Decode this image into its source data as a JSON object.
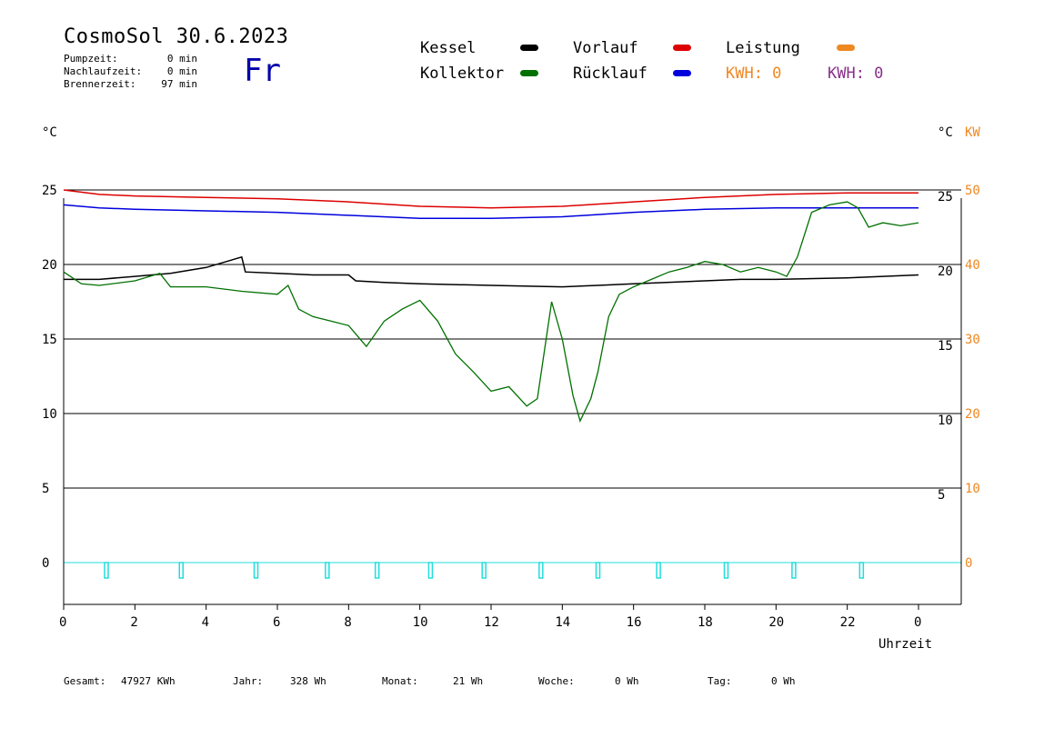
{
  "header": {
    "title": "CosmoSol 30.6.2023",
    "day": "Fr",
    "stats": [
      {
        "label": "Pumpzeit:",
        "value": "0 min"
      },
      {
        "label": "Nachlaufzeit:",
        "value": "0 min"
      },
      {
        "label": "Brennerzeit:",
        "value": "97 min"
      }
    ]
  },
  "legend": {
    "kessel": "Kessel",
    "kollektor": "Kollektor",
    "vorlauf": "Vorlauf",
    "ruecklauf": "Rücklauf",
    "leistung": "Leistung",
    "kwh1": "KWH: 0",
    "kwh2": "KWH: 0"
  },
  "units": {
    "left": "°C",
    "right": "°C",
    "right2": "KW",
    "xlabel": "Uhrzeit"
  },
  "colors": {
    "kessel": "#000000",
    "kollektor": "#007000",
    "vorlauf": "#dd0000",
    "ruecklauf": "#0000dd",
    "leistung": "#ee8822",
    "kwh2": "#8a2f8a",
    "pump": "#22dddd"
  },
  "footer": {
    "gesamt_label": "Gesamt:",
    "gesamt_value": "47927 KWh",
    "jahr_label": "Jahr:",
    "jahr_value": "328 Wh",
    "monat_label": "Monat:",
    "monat_value": "21 Wh",
    "woche_label": "Woche:",
    "woche_value": "0 Wh",
    "tag_label": "Tag:",
    "tag_value": "0 Wh"
  },
  "chart_data": {
    "type": "line",
    "xlabel": "Uhrzeit",
    "ylabel": "°C",
    "xlim": [
      0,
      24
    ],
    "ylim": [
      -2,
      26
    ],
    "x_ticks": [
      "0",
      "2",
      "4",
      "6",
      "8",
      "10",
      "12",
      "14",
      "16",
      "18",
      "20",
      "22",
      "0"
    ],
    "y_ticks_left": [
      "25",
      "20",
      "15",
      "10",
      "5",
      "0"
    ],
    "y_ticks_right": [
      "25",
      "20",
      "15",
      "10",
      "5"
    ],
    "y2_ticks_right": [
      "50",
      "40",
      "30",
      "20",
      "10",
      "0"
    ],
    "grid": true,
    "series": [
      {
        "name": "Vorlauf",
        "color": "#dd0000",
        "x": [
          0,
          1,
          2,
          4,
          6,
          8,
          10,
          12,
          14,
          16,
          18,
          20,
          22,
          24
        ],
        "y": [
          25,
          24.7,
          24.6,
          24.5,
          24.4,
          24.2,
          23.9,
          23.8,
          23.9,
          24.2,
          24.5,
          24.7,
          24.8,
          24.8
        ]
      },
      {
        "name": "Rücklauf",
        "color": "#0000dd",
        "x": [
          0,
          1,
          2,
          4,
          6,
          8,
          10,
          12,
          14,
          16,
          18,
          20,
          22,
          24
        ],
        "y": [
          24,
          23.8,
          23.7,
          23.6,
          23.5,
          23.3,
          23.1,
          23.1,
          23.2,
          23.5,
          23.7,
          23.8,
          23.8,
          23.8
        ]
      },
      {
        "name": "Kessel",
        "color": "#000000",
        "x": [
          0,
          1,
          2,
          3,
          4,
          5,
          5.1,
          6,
          7,
          8,
          8.2,
          9,
          10,
          12,
          14,
          15,
          16,
          18,
          19,
          20,
          22,
          24
        ],
        "y": [
          19,
          19,
          19.2,
          19.4,
          19.8,
          20.5,
          19.5,
          19.4,
          19.3,
          19.3,
          18.9,
          18.8,
          18.7,
          18.6,
          18.5,
          18.6,
          18.7,
          18.9,
          19,
          19,
          19.1,
          19.3
        ]
      },
      {
        "name": "Kollektor",
        "color": "#007000",
        "x": [
          0,
          0.5,
          1,
          2,
          2.7,
          3,
          4,
          5,
          6,
          6.3,
          6.6,
          7,
          7.5,
          8,
          8.5,
          9,
          9.5,
          10,
          10.5,
          11,
          11.5,
          12,
          12.5,
          13,
          13.3,
          13.7,
          14,
          14.3,
          14.5,
          14.8,
          15,
          15.3,
          15.6,
          16,
          16.5,
          17,
          17.5,
          18,
          18.5,
          19,
          19.5,
          20,
          20.3,
          20.6,
          21,
          21.5,
          22,
          22.3,
          22.6,
          23,
          23.5,
          24
        ],
        "y": [
          19.5,
          18.7,
          18.6,
          18.9,
          19.4,
          18.5,
          18.5,
          18.2,
          18.0,
          18.6,
          17.0,
          16.5,
          16.2,
          15.9,
          14.5,
          16.2,
          17.0,
          17.6,
          16.2,
          14.0,
          12.8,
          11.5,
          11.8,
          10.5,
          11.0,
          17.5,
          15.0,
          11.2,
          9.5,
          11.0,
          12.8,
          16.5,
          18.0,
          18.5,
          19.0,
          19.5,
          19.8,
          20.2,
          20.0,
          19.5,
          19.8,
          19.5,
          19.2,
          20.5,
          23.5,
          24.0,
          24.2,
          23.8,
          22.5,
          22.8,
          22.6,
          22.8
        ]
      },
      {
        "name": "Pumpe",
        "color": "#22dddd",
        "x": [
          1.2,
          3.3,
          5.4,
          7.4,
          8.8,
          10.3,
          11.8,
          13.4,
          15.0,
          16.7,
          18.6,
          20.5,
          22.4
        ],
        "y": [
          0,
          0,
          0,
          0,
          0,
          0,
          0,
          0,
          0,
          0,
          0,
          0,
          0
        ]
      }
    ]
  }
}
